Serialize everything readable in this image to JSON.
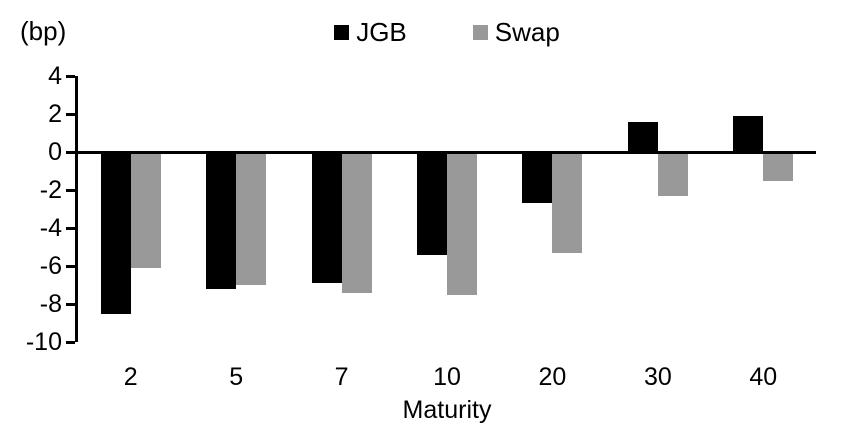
{
  "chart_data": {
    "type": "bar",
    "title": "",
    "unit_label": "(bp)",
    "xlabel": "Maturity",
    "categories": [
      "2",
      "5",
      "7",
      "10",
      "20",
      "30",
      "40"
    ],
    "series": [
      {
        "name": "JGB",
        "color": "#000000",
        "values": [
          -8.5,
          -7.2,
          -6.9,
          -5.4,
          -2.7,
          1.6,
          1.9
        ]
      },
      {
        "name": "Swap",
        "color": "#999999",
        "values": [
          -6.1,
          -7.0,
          -7.4,
          -7.5,
          -5.3,
          -2.3,
          -1.5
        ]
      }
    ],
    "ylim": [
      -10,
      4
    ],
    "yticks": [
      4,
      2,
      0,
      -2,
      -4,
      -6,
      -8,
      -10
    ],
    "grid": false,
    "legend_position": "top-center",
    "axis_color": "#000000",
    "background_color": "#ffffff"
  }
}
